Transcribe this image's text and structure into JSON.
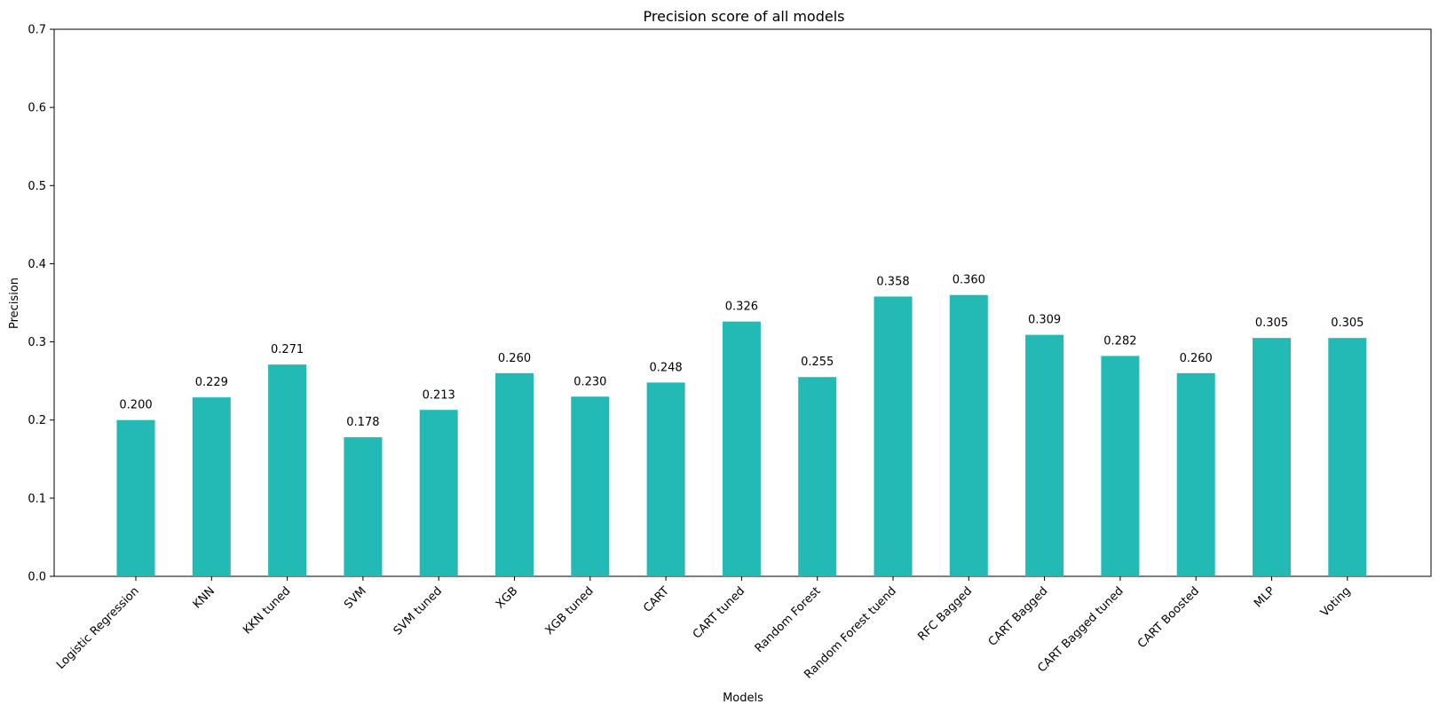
{
  "chart_data": {
    "type": "bar",
    "title": "Precision score of all models",
    "xlabel": "Models",
    "ylabel": "Precision",
    "ylim": [
      0,
      0.7
    ],
    "yticks": [
      "0.0",
      "0.1",
      "0.2",
      "0.3",
      "0.4",
      "0.5",
      "0.6",
      "0.7"
    ],
    "categories": [
      "Logistic Regression",
      "KNN",
      "KKN tuned",
      "SVM",
      "SVM tuned",
      "XGB",
      "XGB tuned",
      "CART",
      "CART tuned",
      "Random Forest",
      "Random Forest tuend",
      "RFC Bagged",
      "CART Bagged",
      "CART Bagged tuned",
      "CART Boosted",
      "MLP",
      "Voting"
    ],
    "values": [
      0.2,
      0.229,
      0.271,
      0.178,
      0.213,
      0.26,
      0.23,
      0.248,
      0.326,
      0.255,
      0.358,
      0.36,
      0.309,
      0.282,
      0.26,
      0.305,
      0.305
    ],
    "value_labels": [
      "0.200",
      "0.229",
      "0.271",
      "0.178",
      "0.213",
      "0.260",
      "0.230",
      "0.248",
      "0.326",
      "0.255",
      "0.358",
      "0.360",
      "0.309",
      "0.282",
      "0.260",
      "0.305",
      "0.305"
    ],
    "bar_color": "#23bab5",
    "grid": false,
    "legend": "none"
  }
}
